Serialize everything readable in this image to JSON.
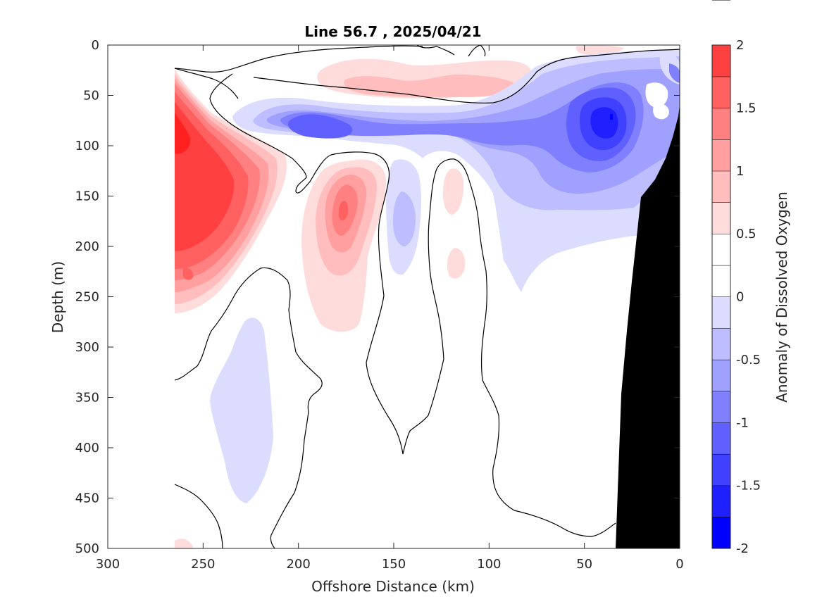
{
  "chart_data": {
    "type": "heatmap",
    "subtype": "filled contour section",
    "title": "Line 56.7 , 2025/04/21",
    "xlabel": "Offshore Distance (km)",
    "ylabel": "Depth (m)",
    "xlim": [
      300,
      0
    ],
    "x_reversed": true,
    "ylim": [
      0,
      500
    ],
    "y_reversed": true,
    "x_ticks": [
      300,
      250,
      200,
      150,
      100,
      50,
      0
    ],
    "y_ticks": [
      0,
      50,
      100,
      150,
      200,
      250,
      300,
      350,
      400,
      450,
      500
    ],
    "colorbar": {
      "label": "Anomaly of Dissolved Oxygen",
      "range": [
        -2,
        2
      ],
      "ticks": [
        2,
        1.5,
        1,
        0.5,
        0,
        -0.5,
        -1,
        -1.5,
        -2
      ],
      "levels": [
        -2,
        -1.75,
        -1.5,
        -1.25,
        -1,
        -0.75,
        -0.5,
        -0.25,
        0,
        0.25,
        0.5,
        0.75,
        1,
        1.25,
        1.5,
        1.75,
        2
      ],
      "colors": [
        "#0000ff",
        "#2020ff",
        "#4040ff",
        "#6060ff",
        "#8080ff",
        "#a0a0ff",
        "#bdbdff",
        "#dcdcff",
        "#ffffff",
        "#ffffff",
        "#ffdcdc",
        "#ffbdbd",
        "#ff9f9f",
        "#ff8080",
        "#ff6060",
        "#ff4040",
        "#ff2020"
      ]
    },
    "bathymetry_color": "#000000",
    "grid": false,
    "features": [
      {
        "kind": "positive anomaly core",
        "center_km": 255,
        "center_depth_m": 110,
        "peak": 1.75
      },
      {
        "kind": "positive anomaly core",
        "center_km": 175,
        "center_depth_m": 165,
        "peak": 1.25
      },
      {
        "kind": "positive anomaly band",
        "center_km": 150,
        "center_depth_m": 40,
        "peak": 0.75
      },
      {
        "kind": "negative anomaly core",
        "center_km": 190,
        "center_depth_m": 80,
        "peak": -1.25
      },
      {
        "kind": "negative anomaly core",
        "center_km": 40,
        "center_depth_m": 75,
        "peak": -1.75
      },
      {
        "kind": "negative anomaly patch",
        "center_km": 225,
        "center_depth_m": 370,
        "peak": -0.5
      },
      {
        "kind": "negative anomaly patch",
        "center_km": 145,
        "center_depth_m": 180,
        "peak": -0.75
      }
    ]
  }
}
